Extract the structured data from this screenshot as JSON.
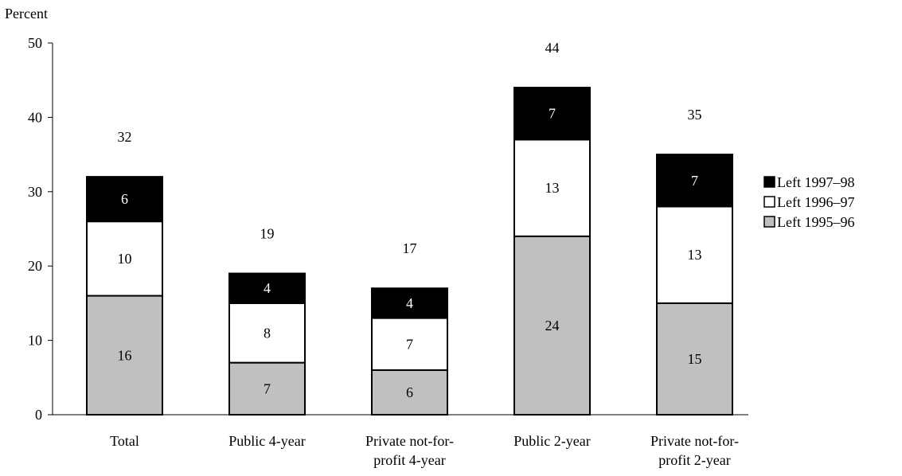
{
  "chart_data": {
    "type": "bar",
    "stacked": true,
    "title": "",
    "xlabel": "",
    "ylabel": "Percent",
    "ylim": [
      0,
      50
    ],
    "yticks": [
      0,
      10,
      20,
      30,
      40,
      50
    ],
    "grid": false,
    "legend_position": "right",
    "categories": [
      [
        "Total"
      ],
      [
        "Public 4-year"
      ],
      [
        "Private not-for-",
        "profit 4-year"
      ],
      [
        "Public 2-year"
      ],
      [
        "Private not-for-",
        "profit 2-year"
      ]
    ],
    "series": [
      {
        "name": "Left 1995–96",
        "color": "#c0c0c0",
        "values": [
          16,
          7,
          6,
          24,
          15
        ]
      },
      {
        "name": "Left 1996–97",
        "color": "#ffffff",
        "values": [
          10,
          8,
          7,
          13,
          13
        ]
      },
      {
        "name": "Left 1997–98",
        "color": "#000000",
        "values": [
          6,
          4,
          4,
          7,
          7
        ]
      }
    ],
    "totals": [
      32,
      19,
      17,
      44,
      35
    ],
    "legend_order": [
      "Left 1997–98",
      "Left 1996–97",
      "Left 1995–96"
    ]
  }
}
